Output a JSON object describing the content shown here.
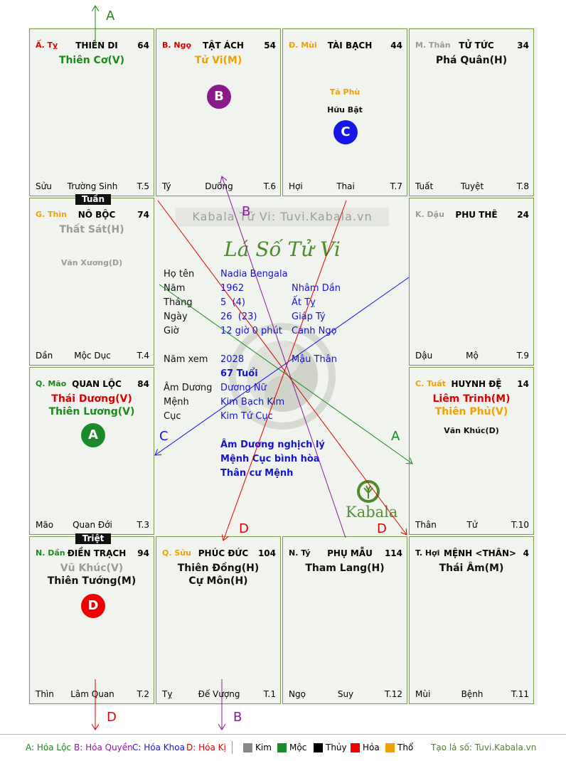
{
  "colors": {
    "loc": "#1a8a1a",
    "quyen": "#8a1a9a",
    "khoa": "#1515d8",
    "ky": "#dd0000",
    "kim": "#888888",
    "moc": "#1a8a2a",
    "thuy": "#000000",
    "hoa": "#ee0000",
    "tho": "#f0a000",
    "branch": "#dd0000",
    "grid": "#7a9a4e"
  },
  "cells": {
    "ty_top": {
      "branch": "Ấ. Tỵ",
      "palace": "THIÊN DI",
      "num": "64",
      "star1": "Thiên Cơ(V)",
      "bl": "Sửu",
      "bm": "Trường Sinh",
      "br": "T.5"
    },
    "ngo": {
      "branch": "B. Ngọ",
      "palace": "TẬT ÁCH",
      "num": "54",
      "star1": "Tử Vi(M)",
      "bl": "Tý",
      "bm": "Dưỡng",
      "br": "T.6"
    },
    "mui": {
      "branch": "Đ. Mùi",
      "palace": "TÀI BẠCH",
      "num": "44",
      "minor1": "Tả Phù",
      "minor2": "Hữu Bật",
      "bl": "Hợi",
      "bm": "Thai",
      "br": "T.7"
    },
    "than": {
      "branch": "M. Thân",
      "palace": "TỬ TỨC",
      "num": "34",
      "star1": "Phá Quân(H)",
      "bl": "Tuất",
      "bm": "Tuyệt",
      "br": "T.8"
    },
    "thin": {
      "branch": "G. Thìn",
      "palace": "NÔ BỘC",
      "num": "74",
      "star1": "Thất Sát(H)",
      "minor1": "Văn Xương(D)",
      "bl": "Dần",
      "bm": "Mộc Dục",
      "br": "T.4"
    },
    "dau": {
      "branch": "K. Dậu",
      "palace": "PHU THÊ",
      "num": "24",
      "bl": "Dậu",
      "bm": "Mộ",
      "br": "T.9"
    },
    "mao": {
      "branch": "Q. Mão",
      "palace": "QUAN LỘC",
      "num": "84",
      "star1": "Thái Dương(V)",
      "star2": "Thiên Lương(V)",
      "bl": "Mão",
      "bm": "Quan Đới",
      "br": "T.3"
    },
    "tuat": {
      "branch": "C. Tuất",
      "palace": "HUYNH ĐỆ",
      "num": "14",
      "star1": "Liêm Trinh(M)",
      "star2": "Thiên Phủ(V)",
      "minor1": "Văn Khúc(D)",
      "bl": "Thân",
      "bm": "Tử",
      "br": "T.10"
    },
    "dan": {
      "branch": "N. Dần",
      "palace": "ĐIỀN TRẠCH",
      "num": "94",
      "star1": "Vũ Khúc(V)",
      "star2": "Thiên Tướng(M)",
      "bl": "Thìn",
      "bm": "Lâm Quan",
      "br": "T.2"
    },
    "suu": {
      "branch": "Q. Sửu",
      "palace": "PHÚC ĐỨC",
      "num": "104",
      "star1": "Thiên Đồng(H)",
      "star2": "Cự Môn(H)",
      "bl": "Tỵ",
      "bm": "Đế Vượng",
      "br": "T.1"
    },
    "ty_bot": {
      "branch": "N. Tý",
      "palace": "PHỤ MẪU",
      "num": "114",
      "star1": "Tham Lang(H)",
      "bl": "Ngọ",
      "bm": "Suy",
      "br": "T.12"
    },
    "hoi": {
      "branch": "T. Hợi",
      "palace": "MỆNH <THÂN>",
      "num": "4",
      "star1": "Thái Âm(M)",
      "bl": "Mùi",
      "bm": "Bệnh",
      "br": "T.11"
    }
  },
  "tags": {
    "tuan": "Tuần",
    "triet": "Triệt"
  },
  "circles": {
    "a": "A",
    "b": "B",
    "c": "C",
    "d": "D"
  },
  "arrow_labels": {
    "a_top": "A",
    "a_right": "A",
    "b_top": "B",
    "b_bottom": "B",
    "c_left": "C",
    "d_left": "D",
    "d_right": "D",
    "d_bottom": "D"
  },
  "center": {
    "watermark": "Kabala Tử Vi: Tuvi.Kabala.vn",
    "title": "Lá Số Tử Vi",
    "labels": {
      "ho_ten": "Họ tên",
      "nam": "Năm",
      "thang": "Tháng",
      "ngay": "Ngày",
      "gio": "Giờ",
      "nam_xem": "Năm xem",
      "am_duong": "Âm Dương",
      "menh": "Mệnh",
      "cuc": "Cục"
    },
    "ho_ten": "Nadia Bengala",
    "nam": "1962",
    "nam_can": "Nhâm Dần",
    "thang": "5  (4)",
    "thang_can": "Ất Tỵ",
    "ngay": "26  (23)",
    "ngay_can": "Giáp Tý",
    "gio": "12 giờ 0 phút",
    "gio_can": "Canh Ngọ",
    "nam_xem": "2028",
    "nam_xem_can": "Mậu Thân",
    "tuoi": "67 Tuổi",
    "am_duong": "Dương Nữ",
    "menh": "Kim Bạch Kim",
    "cuc": "Kim Tứ Cục",
    "note1": "Âm Dương nghịch lý",
    "note2": "Mệnh Cục bình hòa",
    "note3": "Thân cư Mệnh",
    "logo": "Kabala"
  },
  "legend": {
    "a": "A: Hóa Lộc",
    "b": "B: Hóa Quyền",
    "c": "C: Hóa Khoa",
    "d": "D: Hóa Kị",
    "kim": "Kim",
    "moc": "Mộc",
    "thuy": "Thủy",
    "hoa": "Hỏa",
    "tho": "Thổ",
    "site": "Tạo lá số: Tuvi.Kabala.vn"
  }
}
